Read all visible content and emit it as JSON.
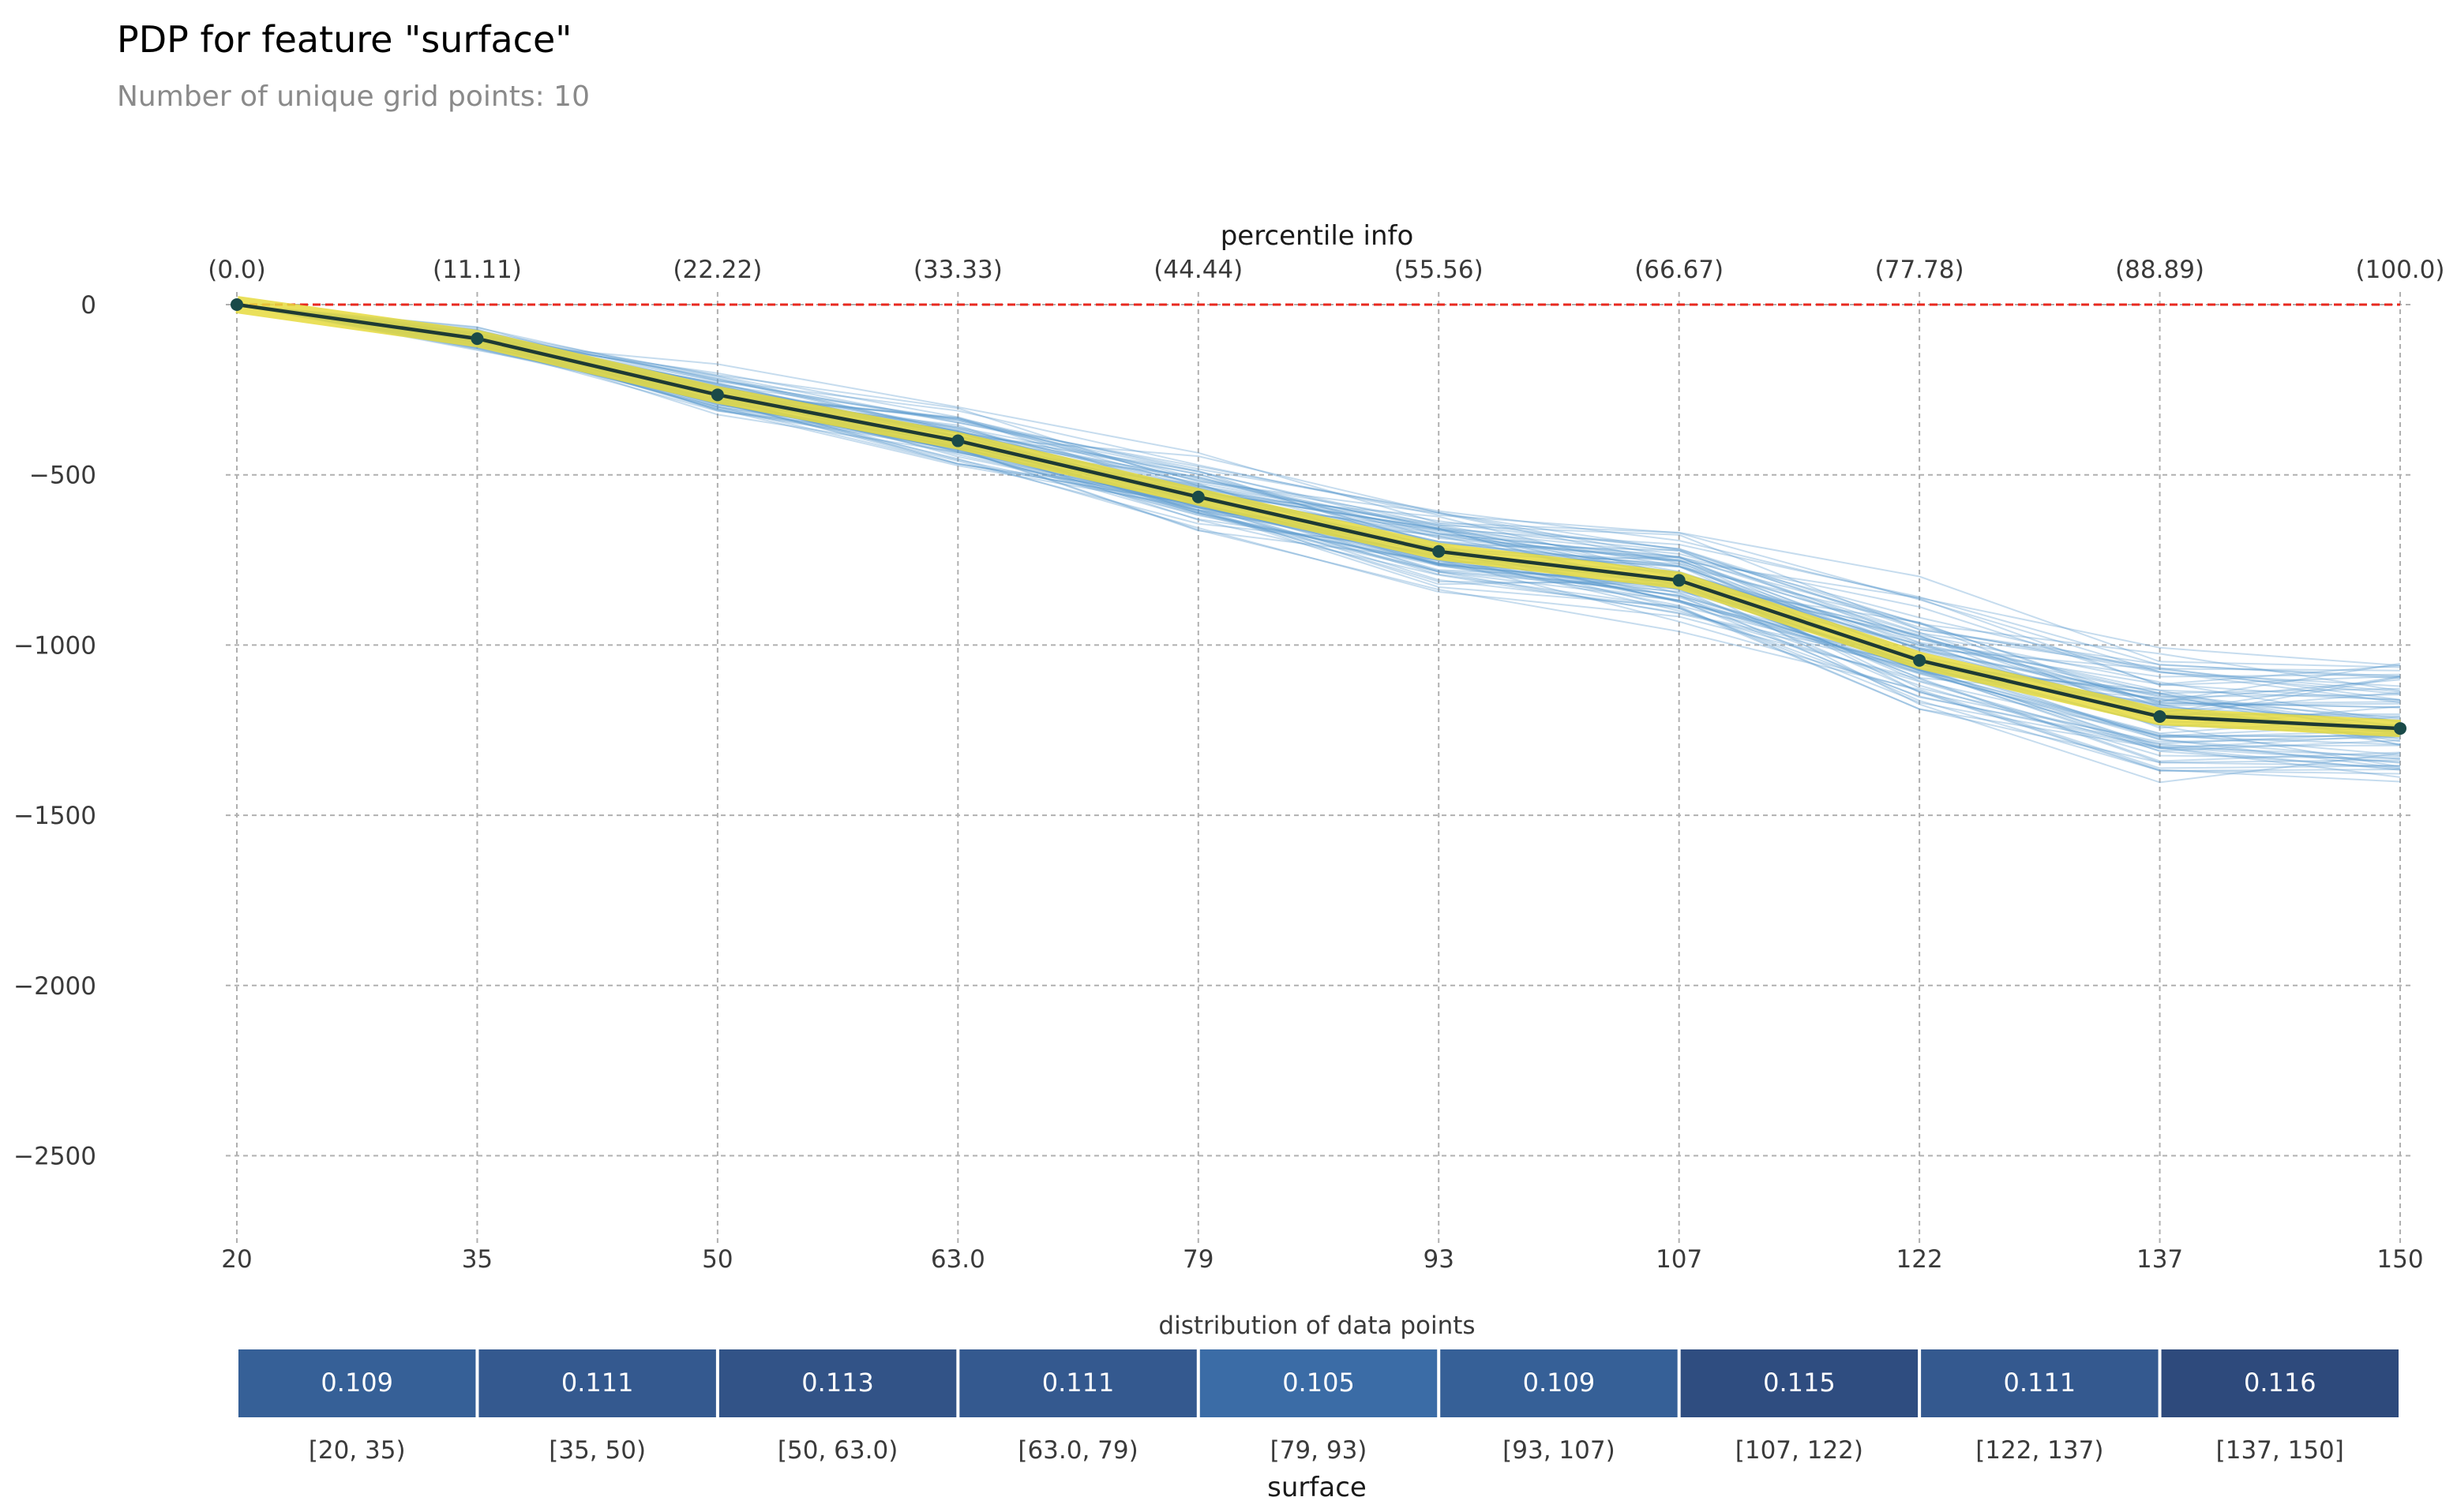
{
  "chart_data": {
    "type": "line",
    "title": "PDP for feature \"surface\"",
    "subtitle": "Number of unique grid points: 10",
    "top_axis_label": "percentile info",
    "percentile_ticks": [
      "(0.0)",
      "(11.11)",
      "(22.22)",
      "(33.33)",
      "(44.44)",
      "(55.56)",
      "(66.67)",
      "(77.78)",
      "(88.89)",
      "(100.0)"
    ],
    "x_tick_labels": [
      "20",
      "35",
      "50",
      "63.0",
      "79",
      "93",
      "107",
      "122",
      "137",
      "150"
    ],
    "y_ticks": [
      0,
      -500,
      -1000,
      -1500,
      -2000,
      -2500
    ],
    "y_tick_labels": [
      "0",
      "−500",
      "−1000",
      "−1500",
      "−2000",
      "−2500"
    ],
    "ylim": [
      -2750,
      70
    ],
    "series": [
      {
        "name": "PDP",
        "values": [
          0,
          -100,
          -265,
          -400,
          -565,
          -725,
          -810,
          -1045,
          -1210,
          -1245
        ]
      }
    ],
    "reference_line": 0,
    "ice_lines_count": 80,
    "distribution": {
      "title": "distribution of data points",
      "xlabel": "surface",
      "bins": [
        "[20, 35)",
        "[35, 50)",
        "[50, 63.0)",
        "[63.0, 79)",
        "[79, 93)",
        "[93, 107)",
        "[107, 122)",
        "[122, 137)",
        "[137, 150]"
      ],
      "values": [
        "0.109",
        "0.111",
        "0.113",
        "0.111",
        "0.105",
        "0.109",
        "0.115",
        "0.111",
        "0.116"
      ]
    },
    "colors": {
      "ice": "#5b9ccf",
      "pdp_band": "#e6db3e",
      "pdp_line": "#1e3a34",
      "pdp_marker": "#1a4a48",
      "reference": "#e8291f",
      "grid": "#b0b0b0",
      "dist_low": "#3b6ca6",
      "dist_high": "#2e4a7c"
    }
  }
}
